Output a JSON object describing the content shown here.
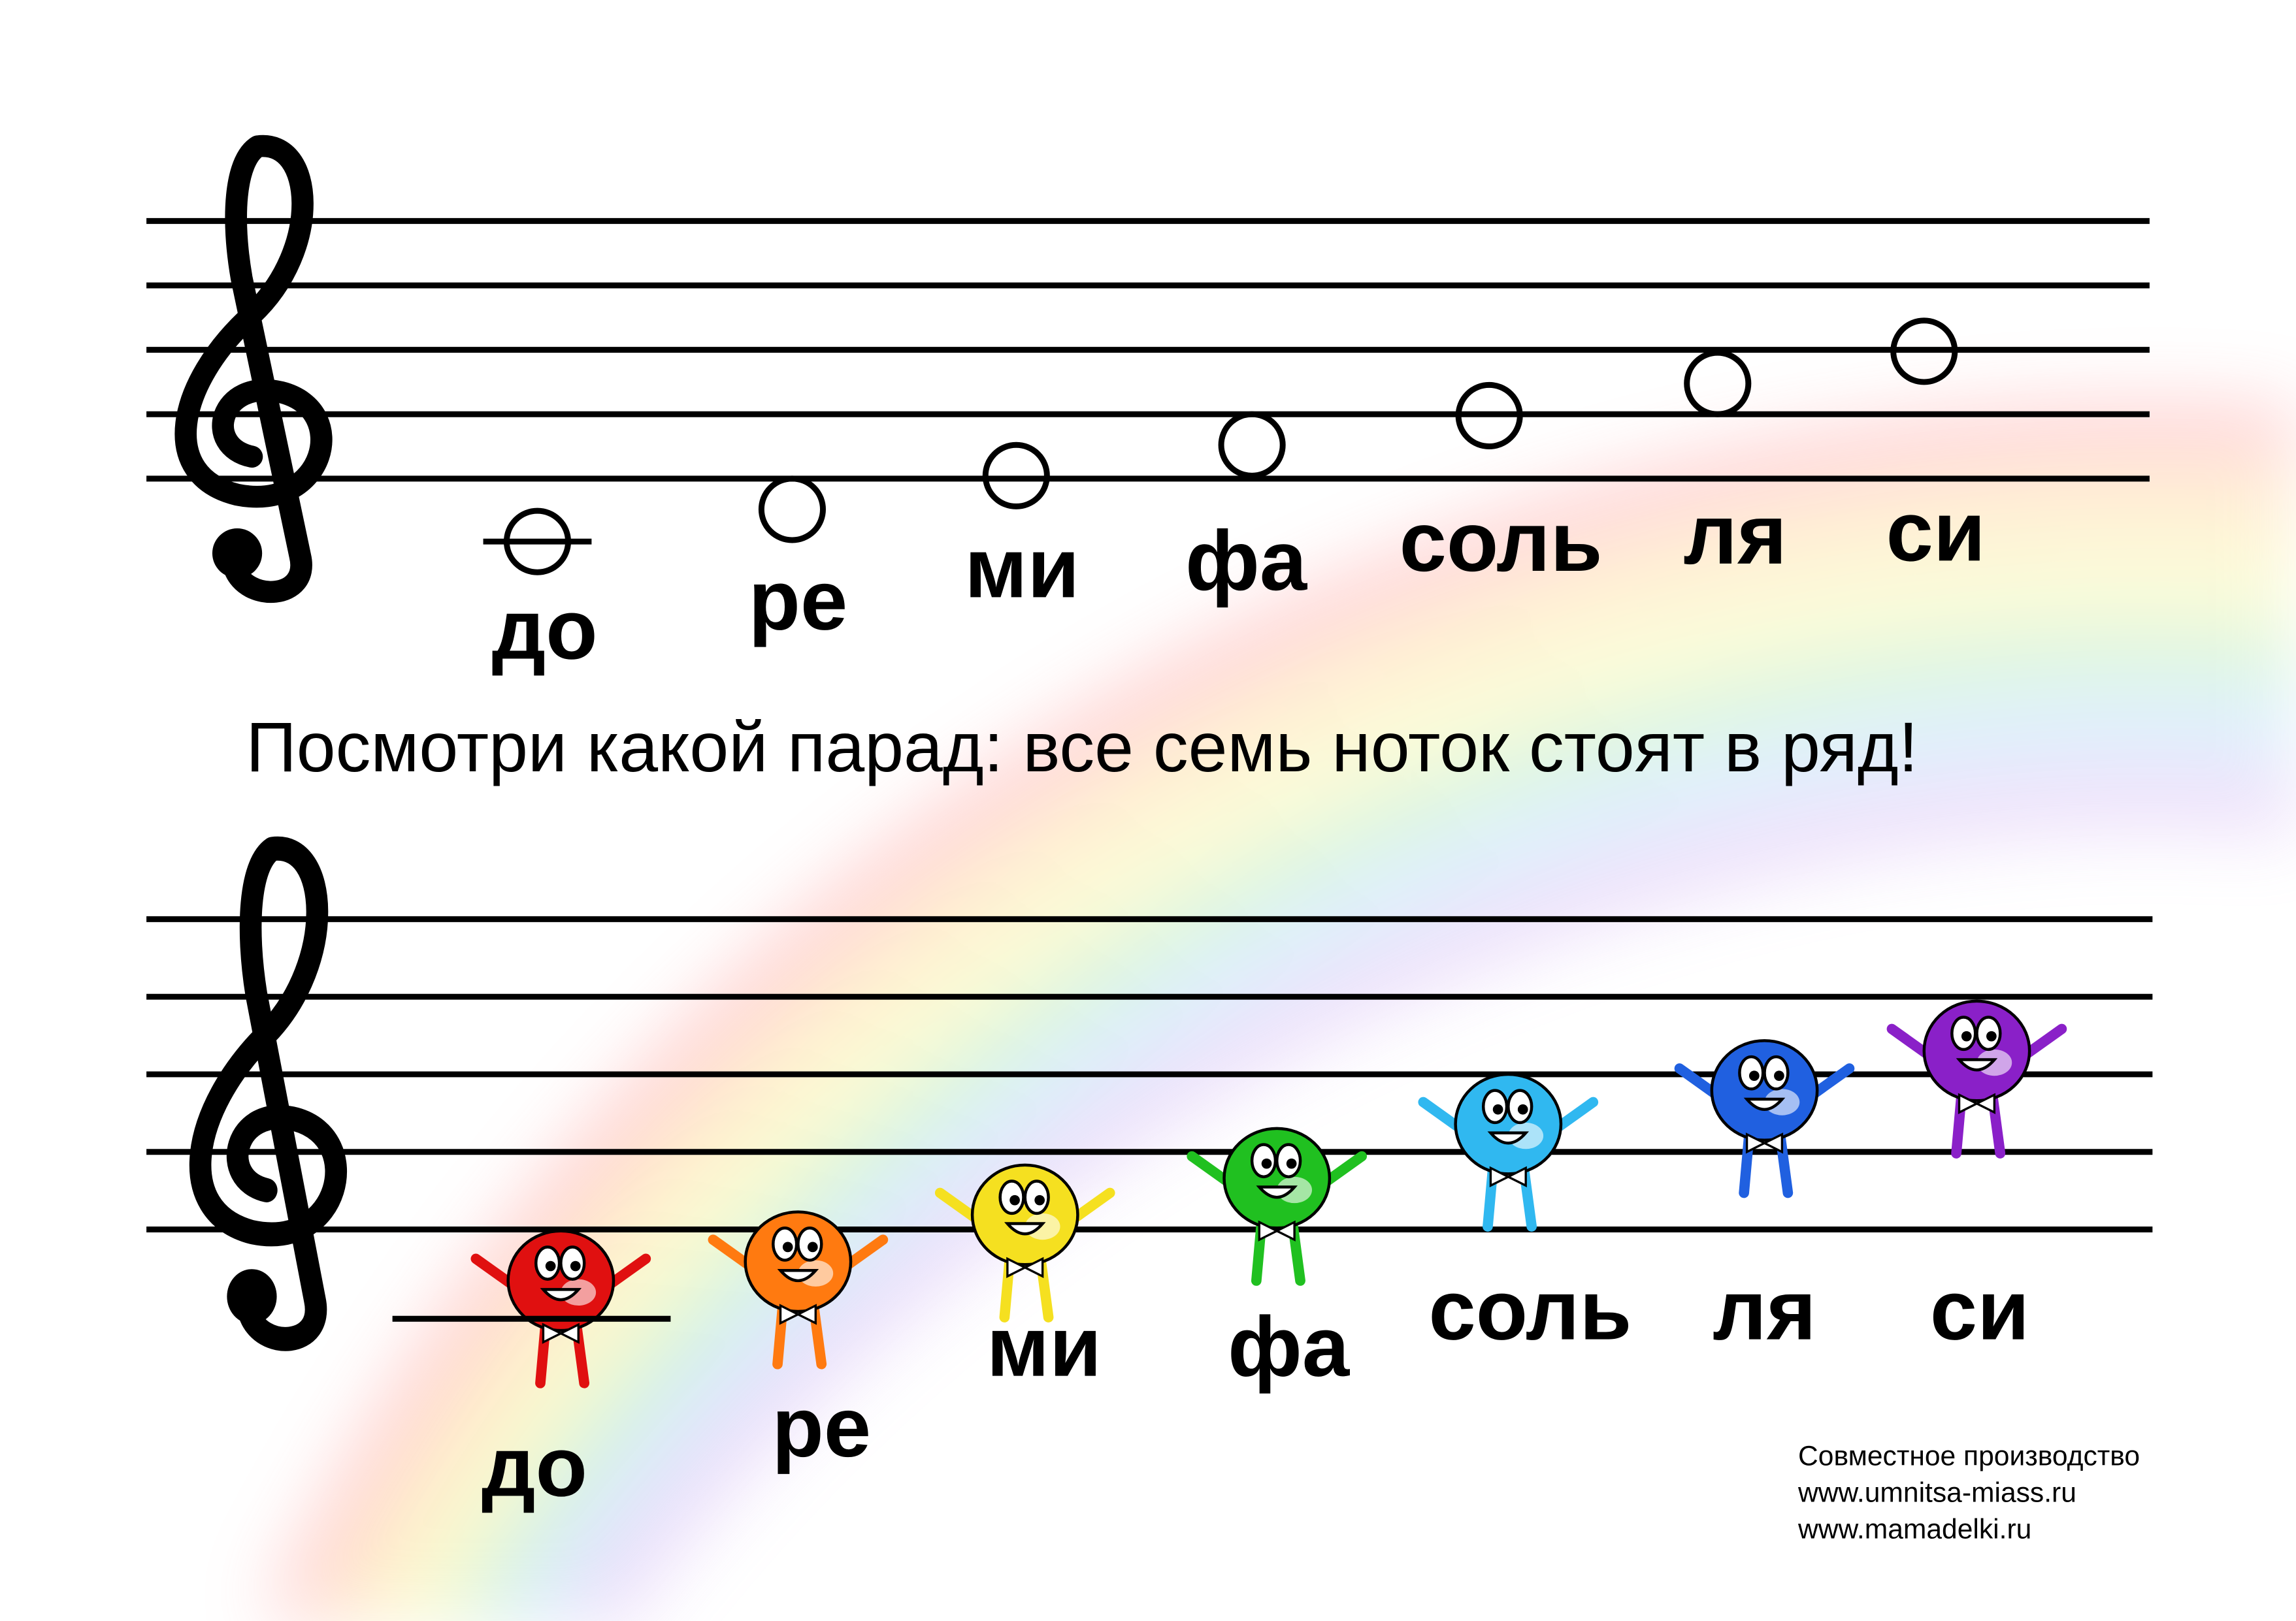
{
  "top_staff": {
    "notes": [
      "до",
      "ре",
      "ми",
      "фа",
      "соль",
      "ля",
      "си"
    ]
  },
  "caption": "Посмотри какой парад:  все семь ноток стоят в ряд!",
  "bottom_staff": {
    "notes": [
      "до",
      "ре",
      "ми",
      "фа",
      "соль",
      "ля",
      "си"
    ]
  },
  "credits": [
    "Совместное производство",
    "www.umnitsa-miass.ru",
    "www.mamadelki.ru"
  ]
}
